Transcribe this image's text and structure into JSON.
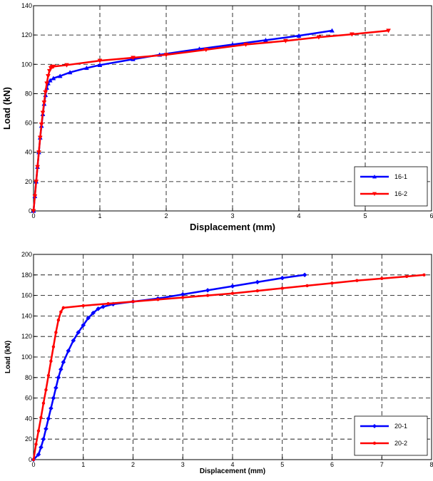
{
  "chart_data": [
    {
      "type": "line",
      "title": "",
      "xlabel": "Displacement (mm)",
      "ylabel": "Load (kN)",
      "xlim": [
        0,
        6
      ],
      "ylim": [
        0,
        140
      ],
      "xticks": [
        0,
        1,
        2,
        3,
        4,
        5,
        6
      ],
      "yticks": [
        0,
        20,
        40,
        60,
        80,
        100,
        120,
        140
      ],
      "grid": true,
      "legend_position": "bottom-right",
      "series": [
        {
          "name": "16-1",
          "color": "#0000ff",
          "marker": "triangle-up",
          "x": [
            0,
            0.02,
            0.04,
            0.06,
            0.08,
            0.1,
            0.12,
            0.14,
            0.16,
            0.18,
            0.2,
            0.22,
            0.25,
            0.3,
            0.4,
            0.55,
            0.8,
            1.0,
            1.5,
            1.9,
            2.5,
            3.0,
            3.5,
            4.0,
            4.5
          ],
          "y": [
            0,
            10,
            20,
            30,
            40,
            50,
            58,
            66,
            73,
            79,
            84,
            87,
            89,
            90.5,
            92,
            94.5,
            97.5,
            99.5,
            103.5,
            106.5,
            110.5,
            113.5,
            116.5,
            119.5,
            123
          ]
        },
        {
          "name": "16-2",
          "color": "#ff0000",
          "marker": "triangle-down",
          "x": [
            0,
            0.02,
            0.04,
            0.06,
            0.08,
            0.1,
            0.12,
            0.14,
            0.16,
            0.18,
            0.2,
            0.22,
            0.24,
            0.26,
            0.28,
            0.3,
            0.5,
            1.0,
            1.5,
            2.0,
            2.6,
            3.2,
            3.8,
            4.3,
            4.8,
            5.35
          ],
          "y": [
            0,
            10,
            20,
            30,
            40,
            50,
            59,
            67,
            74,
            81,
            87,
            92,
            95.5,
            97.5,
            98.3,
            98.5,
            99.5,
            102.5,
            104.5,
            106.5,
            110,
            113.5,
            116,
            118.5,
            120.5,
            123
          ]
        }
      ]
    },
    {
      "type": "line",
      "title": "",
      "xlabel": "Displacement (mm)",
      "ylabel": "Load (kN)",
      "xlim": [
        0,
        8
      ],
      "ylim": [
        0,
        200
      ],
      "xticks": [
        0,
        1,
        2,
        3,
        4,
        5,
        6,
        7,
        8
      ],
      "yticks": [
        0,
        20,
        40,
        60,
        80,
        100,
        120,
        140,
        160,
        180,
        200
      ],
      "grid": true,
      "legend_position": "bottom-right",
      "series": [
        {
          "name": "20-1",
          "color": "#0000ff",
          "marker": "diamond",
          "x": [
            0,
            0.1,
            0.15,
            0.2,
            0.25,
            0.3,
            0.35,
            0.4,
            0.45,
            0.5,
            0.55,
            0.6,
            0.7,
            0.8,
            0.9,
            1.0,
            1.1,
            1.2,
            1.3,
            1.4,
            1.6,
            2.0,
            2.5,
            3.0,
            3.5,
            4.0,
            4.5,
            5.0,
            5.45
          ],
          "y": [
            0,
            5,
            12,
            20,
            30,
            40,
            50,
            60,
            70,
            80,
            88,
            95,
            106,
            116,
            124,
            131,
            138,
            143,
            147,
            149,
            151.5,
            154,
            157,
            161,
            165,
            169,
            173,
            177,
            180
          ]
        },
        {
          "name": "20-2",
          "color": "#ff0000",
          "marker": "circle",
          "x": [
            0,
            0.05,
            0.1,
            0.15,
            0.2,
            0.25,
            0.3,
            0.35,
            0.4,
            0.45,
            0.5,
            0.55,
            0.6,
            1.0,
            1.5,
            2.0,
            2.5,
            3.0,
            3.5,
            4.0,
            4.5,
            5.0,
            5.5,
            6.0,
            6.5,
            7.0,
            7.5,
            7.85
          ],
          "y": [
            0,
            15,
            28,
            41,
            55,
            68,
            82,
            96,
            110,
            124,
            136,
            144,
            148,
            150,
            152,
            154,
            156,
            158,
            160,
            162,
            164.5,
            167,
            169.5,
            172,
            174.5,
            176.5,
            178.5,
            180
          ]
        }
      ]
    }
  ]
}
